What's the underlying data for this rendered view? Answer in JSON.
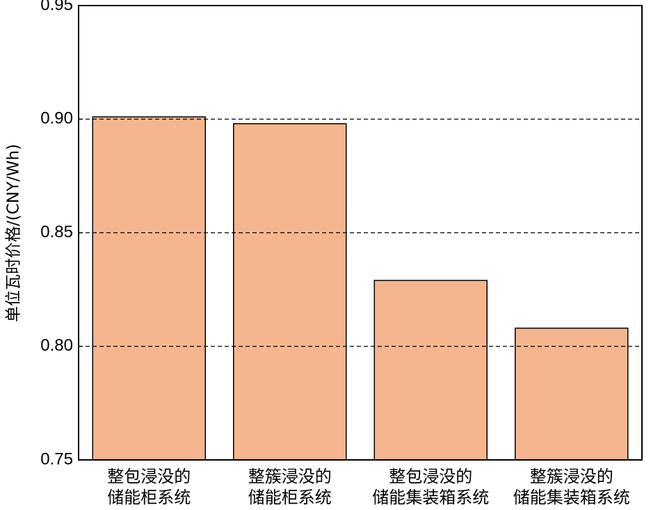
{
  "chart_data": {
    "type": "bar",
    "y_label": "单位瓦时价格/(CNY/Wh)",
    "categories": [
      "整包浸没的\n储能柜系统",
      "整簇浸没的\n储能柜系统",
      "整包浸没的\n储能集装箱系统",
      "整簇浸没的\n储能集装箱系统"
    ],
    "values": [
      0.901,
      0.898,
      0.829,
      0.808
    ],
    "color": "#f5b58e",
    "ylim": [
      0.75,
      0.95
    ],
    "yticks": [
      0.75,
      {
        "value": 0.8,
        "label": "0.80"
      },
      0.85,
      {
        "value": 0.9,
        "label": "0.90"
      },
      0.95
    ],
    "grid": true
  }
}
